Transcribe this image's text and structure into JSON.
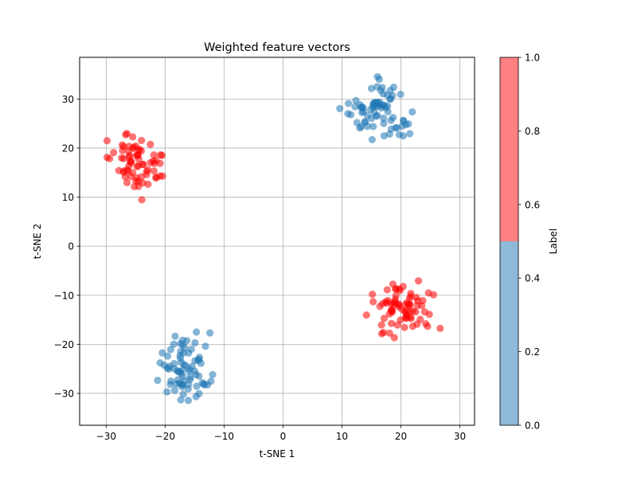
{
  "chart_data": {
    "type": "scatter",
    "title": "Weighted feature vectors",
    "xlabel": "t-SNE 1",
    "ylabel": "t-SNE 2",
    "xlim": [
      -34.5,
      32.5
    ],
    "ylim": [
      -36.5,
      38.5
    ],
    "xticks": [
      -30,
      -20,
      -10,
      0,
      10,
      20,
      30
    ],
    "yticks": [
      -30,
      -20,
      -10,
      0,
      10,
      20,
      30
    ],
    "grid": true,
    "colorbar": {
      "label": "Label",
      "range": [
        0.0,
        1.0
      ],
      "ticks": [
        "0.0",
        "0.2",
        "0.4",
        "0.6",
        "0.8",
        "1.0"
      ],
      "bands": [
        {
          "from": 0.0,
          "to": 0.5,
          "color": "#8fb9d9"
        },
        {
          "from": 0.5,
          "to": 1.0,
          "color": "#ff8080"
        }
      ]
    },
    "colors": {
      "label_0": "#1f77b4",
      "label_1": "#ff0000"
    },
    "clusters": [
      {
        "label": 1,
        "center": [
          -24.5,
          15.5
        ],
        "count": 70
      },
      {
        "label": 0,
        "center": [
          16.5,
          28.0
        ],
        "count": 75
      },
      {
        "label": 1,
        "center": [
          21.5,
          -13.0
        ],
        "count": 75
      },
      {
        "label": 0,
        "center": [
          -17.0,
          -25.5
        ],
        "count": 75
      }
    ]
  }
}
